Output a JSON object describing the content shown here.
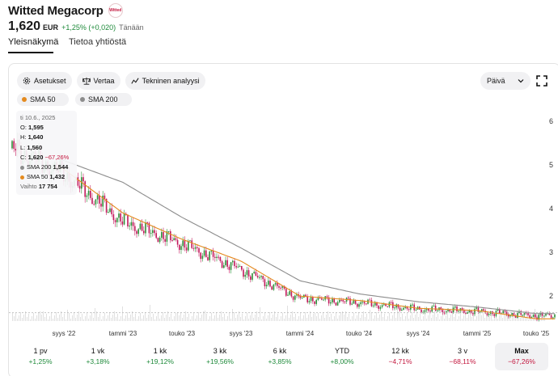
{
  "header": {
    "company": "Witted Megacorp",
    "logo_text": "Witted"
  },
  "quote": {
    "price": "1,620",
    "currency": "EUR",
    "change": "+1,25% (+0,020)",
    "when": "Tänään"
  },
  "tabs": [
    {
      "label": "Yleisnäkymä"
    },
    {
      "label": "Tietoa yhtiöstä"
    }
  ],
  "toolbar": {
    "settings": "Asetukset",
    "compare": "Vertaa",
    "technical": "Tekninen analyysi",
    "period": "Päivä"
  },
  "indicators": [
    {
      "label": "SMA 50",
      "color": "#e48a1e"
    },
    {
      "label": "SMA 200",
      "color": "#8c8c8c"
    }
  ],
  "legend": {
    "date": "ti 10.6., 2025",
    "open_label": "O:",
    "open": "1,595",
    "high_label": "H:",
    "high": "1,640",
    "low_label": "L:",
    "low": "1,560",
    "close_label": "C:",
    "close": "1,620",
    "close_change": "−67,26%",
    "sma200_label": "SMA 200",
    "sma200": "1,544",
    "sma50_label": "SMA 50",
    "sma50": "1,432",
    "volume_label": "Vaihto",
    "volume": "17 754"
  },
  "colors": {
    "up": "#2f8f3a",
    "down": "#c2185b",
    "sma50": "#e48a1e",
    "sma200": "#8c8c8c",
    "positive": "#1e8a3a",
    "negative": "#c3173e"
  },
  "chart_data": {
    "type": "line",
    "x": [
      "syys '22",
      "tammi '23",
      "touko '23",
      "syys '23",
      "tammi '24",
      "touko '24",
      "syys '24",
      "tammi '25",
      "touko '25"
    ],
    "y_ticks": [
      2,
      3,
      4,
      5,
      6
    ],
    "ylim": [
      1.3,
      6.2
    ],
    "series": [
      {
        "name": "",
        "values": [
          4.8,
          3.7,
          3.2,
          2.6,
          1.95,
          1.85,
          1.7,
          1.65,
          1.55
        ]
      },
      {
        "name": "SMA 50",
        "values": [
          4.9,
          3.9,
          3.3,
          2.8,
          2.0,
          1.9,
          1.72,
          1.67,
          1.48
        ]
      },
      {
        "name": "SMA 200",
        "values": [
          5.1,
          4.6,
          3.8,
          3.1,
          2.35,
          2.05,
          1.87,
          1.75,
          1.6
        ]
      }
    ],
    "last_price": 1.62
  },
  "ranges": [
    {
      "label": "1 pv",
      "value": "+1,25%",
      "sign": "pos"
    },
    {
      "label": "1 vk",
      "value": "+3,18%",
      "sign": "pos"
    },
    {
      "label": "1 kk",
      "value": "+19,12%",
      "sign": "pos"
    },
    {
      "label": "3 kk",
      "value": "+19,56%",
      "sign": "pos"
    },
    {
      "label": "6 kk",
      "value": "+3,85%",
      "sign": "pos"
    },
    {
      "label": "YTD",
      "value": "+8,00%",
      "sign": "pos"
    },
    {
      "label": "12 kk",
      "value": "−4,71%",
      "sign": "neg"
    },
    {
      "label": "3 v",
      "value": "−68,11%",
      "sign": "neg"
    },
    {
      "label": "Max",
      "value": "−67,26%",
      "sign": "neg",
      "active": true
    }
  ]
}
